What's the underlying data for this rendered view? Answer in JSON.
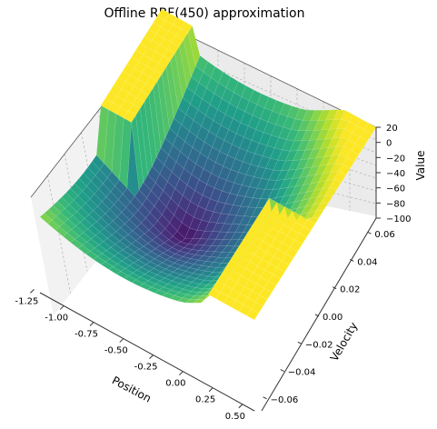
{
  "chart_data": {
    "type": "surface",
    "title": "Offline RBF(450) approximation",
    "xlabel": "Position",
    "ylabel": "Velocity",
    "zlabel": "Value",
    "xlim": [
      -1.2,
      0.6
    ],
    "ylim": [
      -0.07,
      0.07
    ],
    "zlim": [
      -100,
      20
    ],
    "x_ticks": [
      "-1.25",
      "-1.00",
      "-0.75",
      "-0.50",
      "-0.25",
      "0.00",
      "0.25",
      "0.50"
    ],
    "y_ticks": [
      "-0.06",
      "-0.04",
      "-0.02",
      "0.00",
      "0.02",
      "0.04",
      "0.06"
    ],
    "z_ticks": [
      "20",
      "0",
      "-20",
      "-40",
      "-60",
      "-80",
      "-100"
    ],
    "colormap": "viridis",
    "grid": true,
    "surface_summary": {
      "min_value_approx": -95,
      "min_location_approx": {
        "position": -0.5,
        "velocity": 0.0
      },
      "max_value_approx": 20,
      "plateau_regions": [
        {
          "position_range": [
            0.2,
            0.6
          ],
          "velocity_range": [
            -0.07,
            0.0
          ],
          "value": 20
        },
        {
          "position_range": [
            -1.2,
            -0.9
          ],
          "velocity_range": [
            0.0,
            0.07
          ],
          "value": 20
        }
      ]
    }
  }
}
